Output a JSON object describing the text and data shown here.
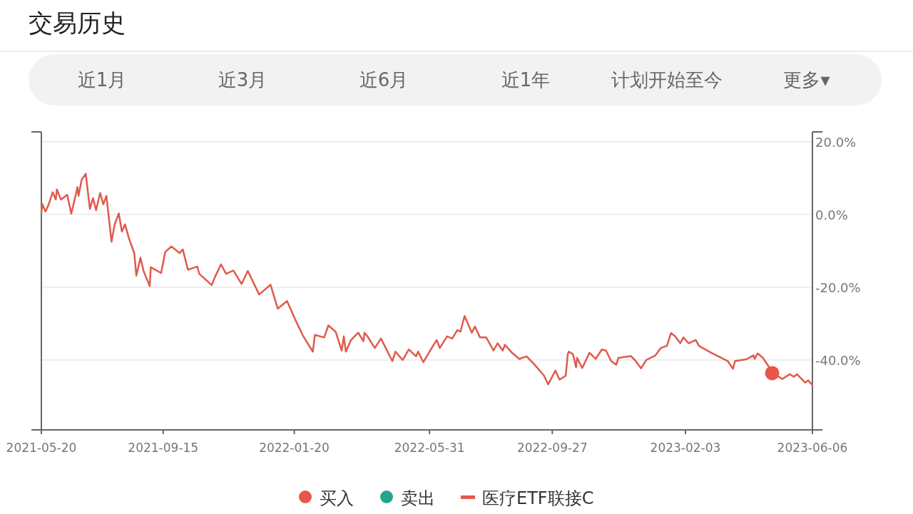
{
  "chart_data": {
    "type": "line",
    "title": "交易历史",
    "annotations": [
      "近1月",
      "近3月",
      "近6月",
      "近1年",
      "计划开始至今",
      "更多▾"
    ],
    "xlim": [
      "2021-05-20",
      "2023-06-06"
    ],
    "xticks": [
      "2021-05-20",
      "2021-09-15",
      "2022-01-20",
      "2022-05-31",
      "2022-09-27",
      "2023-02-03",
      "2023-06-06"
    ],
    "ylim": [
      -59.2,
      22.7
    ],
    "yticks": [
      {
        "value": 20,
        "label": "20.0%"
      },
      {
        "value": 0,
        "label": "0.0%"
      },
      {
        "value": -20,
        "label": "-20.0%"
      },
      {
        "value": -40,
        "label": "-40.0%"
      }
    ],
    "grid": "y",
    "legend": "bottom",
    "series": [
      {
        "name": "买入",
        "type": "scatter",
        "marker": "circle",
        "color": "#e8564a",
        "x": [
          "2023-04-28"
        ],
        "values": [
          -43.6
        ]
      },
      {
        "name": "卖出",
        "type": "scatter",
        "marker": "circle",
        "color": "#26a58c"
      },
      {
        "name": "医疗ETF联接C",
        "marker": "none",
        "color": "#e05a4c",
        "x": [
          "2021-05-20",
          "2021-05-21",
          "2021-05-24",
          "2021-05-27",
          "2021-05-31",
          "2021-06-03",
          "2021-06-04",
          "2021-06-08",
          "2021-06-14",
          "2021-06-18",
          "2021-06-24",
          "2021-06-25",
          "2021-06-28",
          "2021-07-02",
          "2021-07-06",
          "2021-07-09",
          "2021-07-12",
          "2021-07-16",
          "2021-07-19",
          "2021-07-22",
          "2021-07-27",
          "2021-07-30",
          "2021-08-03",
          "2021-08-06",
          "2021-08-09",
          "2021-08-13",
          "2021-08-18",
          "2021-08-20",
          "2021-08-24",
          "2021-08-27",
          "2021-09-02",
          "2021-09-03",
          "2021-09-13",
          "2021-09-17",
          "2021-09-23",
          "2021-10-01",
          "2021-10-04",
          "2021-10-09",
          "2021-10-18",
          "2021-10-20",
          "2021-11-01",
          "2021-11-04",
          "2021-11-10",
          "2021-11-15",
          "2021-11-22",
          "2021-11-30",
          "2021-12-06",
          "2021-12-17",
          "2021-12-28",
          "2022-01-04",
          "2022-01-13",
          "2022-01-21",
          "2022-01-28",
          "2022-02-07",
          "2022-02-09",
          "2022-02-18",
          "2022-02-22",
          "2022-03-01",
          "2022-03-07",
          "2022-03-09",
          "2022-03-11",
          "2022-03-16",
          "2022-03-23",
          "2022-03-28",
          "2022-03-29",
          "2022-04-01",
          "2022-04-08",
          "2022-04-14",
          "2022-04-25",
          "2022-04-28",
          "2022-05-05",
          "2022-05-11",
          "2022-05-18",
          "2022-05-20",
          "2022-05-25",
          "2022-05-31",
          "2022-06-07",
          "2022-06-10",
          "2022-06-17",
          "2022-06-22",
          "2022-06-27",
          "2022-06-30",
          "2022-07-04",
          "2022-07-11",
          "2022-07-14",
          "2022-07-19",
          "2022-07-25",
          "2022-08-01",
          "2022-08-05",
          "2022-08-10",
          "2022-08-12",
          "2022-08-19",
          "2022-08-26",
          "2022-09-02",
          "2022-09-09",
          "2022-09-19",
          "2022-09-23",
          "2022-09-30",
          "2022-10-04",
          "2022-10-10",
          "2022-10-12",
          "2022-10-13",
          "2022-10-17",
          "2022-10-20",
          "2022-10-21",
          "2022-10-26",
          "2022-11-02",
          "2022-11-08",
          "2022-11-14",
          "2022-11-18",
          "2022-11-23",
          "2022-11-28",
          "2022-11-30",
          "2022-12-12",
          "2022-12-16",
          "2022-12-22",
          "2022-12-27",
          "2023-01-05",
          "2023-01-10",
          "2023-01-16",
          "2023-01-20",
          "2023-01-24",
          "2023-01-29",
          "2023-02-01",
          "2023-02-06",
          "2023-02-13",
          "2023-02-16",
          "2023-02-28",
          "2023-03-07",
          "2023-03-16",
          "2023-03-21",
          "2023-03-23",
          "2023-04-03",
          "2023-04-10",
          "2023-04-11",
          "2023-04-14",
          "2023-04-19",
          "2023-04-24",
          "2023-04-28",
          "2023-05-08",
          "2023-05-15",
          "2023-05-19",
          "2023-05-22",
          "2023-05-30",
          "2023-06-02",
          "2023-06-06"
        ],
        "values": [
          0.5,
          2.8,
          0.8,
          2.7,
          6.1,
          4.1,
          6.9,
          4.1,
          5.4,
          0.2,
          7.5,
          5.1,
          9.5,
          11.2,
          1.5,
          4.5,
          1.2,
          5.9,
          2.8,
          5.1,
          -7.5,
          -2.7,
          0.3,
          -4.7,
          -2.7,
          -6.7,
          -10.6,
          -16.8,
          -11.9,
          -15.5,
          -19.7,
          -14.5,
          -16.1,
          -10.3,
          -8.8,
          -10.6,
          -9.6,
          -15.2,
          -14.3,
          -16.3,
          -19.4,
          -17.3,
          -13.7,
          -16.3,
          -15.4,
          -19.1,
          -15.5,
          -22.0,
          -19.3,
          -25.9,
          -23.8,
          -28.9,
          -33.1,
          -37.7,
          -33.1,
          -33.8,
          -30.5,
          -32.2,
          -37.4,
          -33.5,
          -37.7,
          -34.5,
          -32.5,
          -34.8,
          -32.5,
          -33.5,
          -36.7,
          -34.1,
          -40.3,
          -37.7,
          -40.0,
          -37.1,
          -39.0,
          -37.7,
          -40.6,
          -37.7,
          -34.5,
          -36.7,
          -33.5,
          -34.1,
          -31.8,
          -32.2,
          -27.9,
          -32.5,
          -30.8,
          -33.8,
          -33.8,
          -37.4,
          -35.4,
          -37.4,
          -35.8,
          -38.0,
          -39.7,
          -39.0,
          -41.0,
          -44.3,
          -46.7,
          -42.9,
          -45.4,
          -44.3,
          -38.4,
          -37.7,
          -38.4,
          -42.0,
          -39.4,
          -42.2,
          -38.0,
          -39.7,
          -37.1,
          -37.4,
          -40.3,
          -41.3,
          -39.4,
          -38.9,
          -40.0,
          -42.3,
          -40.0,
          -38.7,
          -36.7,
          -36.1,
          -32.6,
          -33.5,
          -35.4,
          -33.8,
          -35.4,
          -34.5,
          -36.1,
          -38.0,
          -39.0,
          -40.3,
          -42.4,
          -40.3,
          -39.8,
          -38.7,
          -39.7,
          -38.2,
          -39.4,
          -41.5,
          -43.6,
          -45.2,
          -43.9,
          -44.6,
          -43.9,
          -46.2,
          -45.6,
          -46.9
        ]
      }
    ]
  }
}
